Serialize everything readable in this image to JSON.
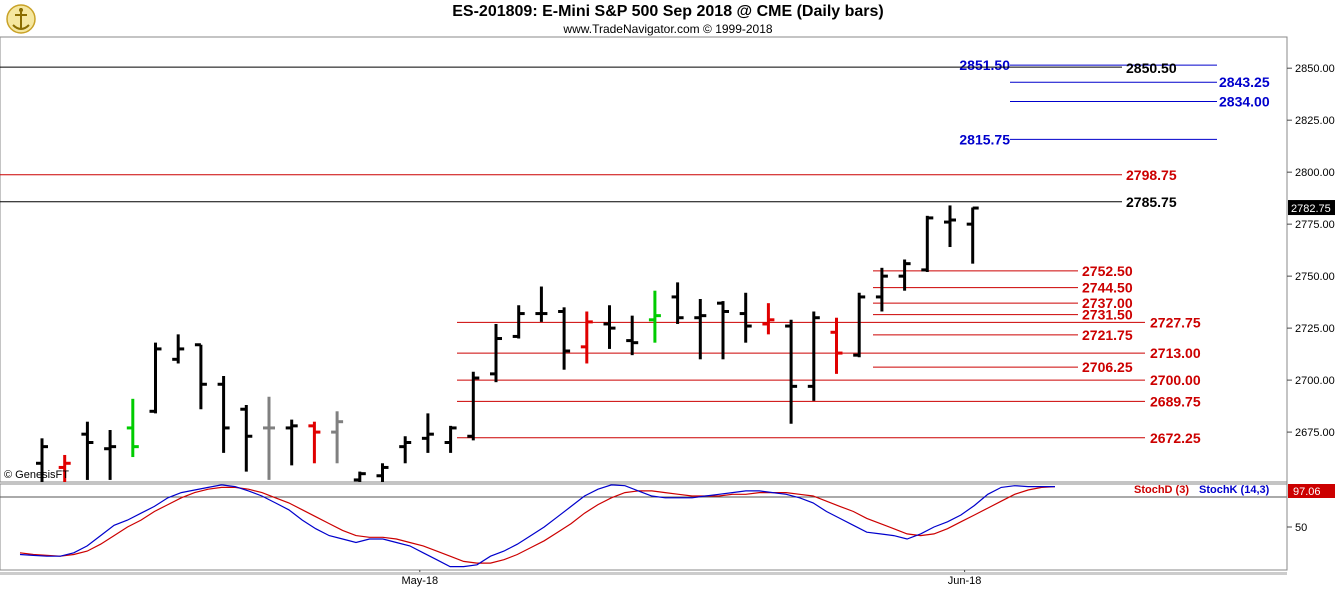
{
  "header": {
    "title": "ES-201809:  E-Mini S&P 500 Sep 2018 @ CME  (Daily bars)",
    "subtitle": "www.TradeNavigator.com © 1999-2018",
    "logo_icon": "trade-navigator-logo-icon"
  },
  "colors": {
    "bar_default": "#000000",
    "bar_up_highlight": "#00cc00",
    "bar_down_highlight": "#e00000",
    "bar_neutral": "#808080",
    "level_black": "#000000",
    "level_red": "#cc0000",
    "level_blue": "#0000cc",
    "stochD": "#cc0000",
    "stochK": "#0000cc",
    "price_badge_bg": "#000000",
    "stoch_badge_bg": "#cc0000"
  },
  "chart_data": {
    "type": "bar",
    "subtype": "ohlc",
    "title": "ES-201809:  E-Mini S&P 500 Sep 2018 @ CME  (Daily bars)",
    "watermark": "© GenesisFT",
    "price_axis": {
      "side": "right",
      "range": [
        2651,
        2865
      ],
      "ticks": [
        "2850.00",
        "2825.00",
        "2800.00",
        "2775.00",
        "2750.00",
        "2725.00",
        "2700.00",
        "2675.00"
      ],
      "tick_values": [
        2850,
        2825,
        2800,
        2775,
        2750,
        2725,
        2700,
        2675
      ],
      "current_price": "2782.75"
    },
    "bars": [
      {
        "o": 2660,
        "h": 2672,
        "l": 2650,
        "c": 2668,
        "color": "black"
      },
      {
        "o": 2658,
        "h": 2664,
        "l": 2650,
        "c": 2660,
        "color": "red"
      },
      {
        "o": 2674,
        "h": 2680,
        "l": 2652,
        "c": 2670,
        "color": "black"
      },
      {
        "o": 2667,
        "h": 2676,
        "l": 2652,
        "c": 2668,
        "color": "black"
      },
      {
        "o": 2677,
        "h": 2691,
        "l": 2663,
        "c": 2668,
        "color": "green"
      },
      {
        "o": 2685,
        "h": 2718,
        "l": 2684,
        "c": 2715,
        "color": "black"
      },
      {
        "o": 2710,
        "h": 2722,
        "l": 2708,
        "c": 2715,
        "color": "black"
      },
      {
        "o": 2717,
        "h": 2717,
        "l": 2686,
        "c": 2698,
        "color": "black"
      },
      {
        "o": 2698,
        "h": 2702,
        "l": 2665,
        "c": 2677,
        "color": "black"
      },
      {
        "o": 2686,
        "h": 2688,
        "l": 2656,
        "c": 2673,
        "color": "black"
      },
      {
        "o": 2677,
        "h": 2692,
        "l": 2652,
        "c": 2677,
        "color": "gray"
      },
      {
        "o": 2677,
        "h": 2681,
        "l": 2659,
        "c": 2678,
        "color": "black"
      },
      {
        "o": 2678,
        "h": 2680,
        "l": 2660,
        "c": 2675,
        "color": "red"
      },
      {
        "o": 2675,
        "h": 2685,
        "l": 2660,
        "c": 2680,
        "color": "gray"
      },
      {
        "o": 2652,
        "h": 2656,
        "l": 2650,
        "c": 2655,
        "color": "black"
      },
      {
        "o": 2654,
        "h": 2660,
        "l": 2650,
        "c": 2658,
        "color": "black"
      },
      {
        "o": 2668,
        "h": 2673,
        "l": 2660,
        "c": 2670,
        "color": "black"
      },
      {
        "o": 2672,
        "h": 2684,
        "l": 2665,
        "c": 2674,
        "color": "black"
      },
      {
        "o": 2670,
        "h": 2678,
        "l": 2665,
        "c": 2677,
        "color": "black"
      },
      {
        "o": 2673,
        "h": 2704,
        "l": 2671,
        "c": 2701,
        "color": "black"
      },
      {
        "o": 2703,
        "h": 2727,
        "l": 2699,
        "c": 2720,
        "color": "black"
      },
      {
        "o": 2721,
        "h": 2736,
        "l": 2720,
        "c": 2732,
        "color": "black"
      },
      {
        "o": 2732,
        "h": 2745,
        "l": 2728,
        "c": 2732,
        "color": "black"
      },
      {
        "o": 2733,
        "h": 2735,
        "l": 2705,
        "c": 2714,
        "color": "black"
      },
      {
        "o": 2716,
        "h": 2733,
        "l": 2708,
        "c": 2728,
        "color": "red"
      },
      {
        "o": 2727,
        "h": 2736,
        "l": 2715,
        "c": 2725,
        "color": "black"
      },
      {
        "o": 2719,
        "h": 2731,
        "l": 2712,
        "c": 2718,
        "color": "black"
      },
      {
        "o": 2729,
        "h": 2743,
        "l": 2718,
        "c": 2731,
        "color": "green"
      },
      {
        "o": 2740,
        "h": 2747,
        "l": 2727,
        "c": 2730,
        "color": "black"
      },
      {
        "o": 2730,
        "h": 2739,
        "l": 2710,
        "c": 2731,
        "color": "black"
      },
      {
        "o": 2737,
        "h": 2738,
        "l": 2710,
        "c": 2733,
        "color": "black"
      },
      {
        "o": 2732,
        "h": 2742,
        "l": 2718,
        "c": 2726,
        "color": "black"
      },
      {
        "o": 2727,
        "h": 2737,
        "l": 2722,
        "c": 2729,
        "color": "red"
      },
      {
        "o": 2726,
        "h": 2729,
        "l": 2679,
        "c": 2697,
        "color": "black"
      },
      {
        "o": 2697,
        "h": 2733,
        "l": 2690,
        "c": 2730,
        "color": "black"
      },
      {
        "o": 2723,
        "h": 2730,
        "l": 2703,
        "c": 2713,
        "color": "red"
      },
      {
        "o": 2712,
        "h": 2742,
        "l": 2711,
        "c": 2740,
        "color": "black"
      },
      {
        "o": 2740,
        "h": 2754,
        "l": 2733,
        "c": 2750,
        "color": "black"
      },
      {
        "o": 2750,
        "h": 2758,
        "l": 2743,
        "c": 2756,
        "color": "black"
      },
      {
        "o": 2753,
        "h": 2779,
        "l": 2752,
        "c": 2778,
        "color": "black"
      },
      {
        "o": 2776,
        "h": 2784,
        "l": 2764,
        "c": 2777,
        "color": "black"
      },
      {
        "o": 2775,
        "h": 2783,
        "l": 2756,
        "c": 2782.75,
        "color": "black"
      }
    ],
    "levels": [
      {
        "label": "2851.50",
        "value": 2851.5,
        "color": "blue",
        "span": "partial",
        "label_side": "left"
      },
      {
        "label": "2850.50",
        "value": 2850.5,
        "color": "black",
        "span": "full",
        "label_side": "right"
      },
      {
        "label": "2843.25",
        "value": 2843.25,
        "color": "blue",
        "span": "short",
        "label_side": "right"
      },
      {
        "label": "2834.00",
        "value": 2834.0,
        "color": "blue",
        "span": "short",
        "label_side": "right"
      },
      {
        "label": "2815.75",
        "value": 2815.75,
        "color": "blue",
        "span": "partial",
        "label_side": "left"
      },
      {
        "label": "2798.75",
        "value": 2798.75,
        "color": "red",
        "span": "full",
        "label_side": "right"
      },
      {
        "label": "2785.75",
        "value": 2785.75,
        "color": "black",
        "span": "full",
        "label_side": "right"
      },
      {
        "label": "2752.50",
        "value": 2752.5,
        "color": "red",
        "span": "short",
        "label_side": "right"
      },
      {
        "label": "2744.50",
        "value": 2744.5,
        "color": "red",
        "span": "short",
        "label_side": "right"
      },
      {
        "label": "2737.00",
        "value": 2737.0,
        "color": "red",
        "span": "short",
        "label_side": "right"
      },
      {
        "label": "2731.50",
        "value": 2731.5,
        "color": "red",
        "span": "short",
        "label_side": "right"
      },
      {
        "label": "2727.75",
        "value": 2727.75,
        "color": "red",
        "span": "mid",
        "label_side": "far"
      },
      {
        "label": "2721.75",
        "value": 2721.75,
        "color": "red",
        "span": "short",
        "label_side": "right"
      },
      {
        "label": "2713.00",
        "value": 2713.0,
        "color": "red",
        "span": "mid",
        "label_side": "far"
      },
      {
        "label": "2706.25",
        "value": 2706.25,
        "color": "red",
        "span": "short",
        "label_side": "right"
      },
      {
        "label": "2700.00",
        "value": 2700.0,
        "color": "red",
        "span": "mid",
        "label_side": "far"
      },
      {
        "label": "2689.75",
        "value": 2689.75,
        "color": "red",
        "span": "mid",
        "label_side": "far"
      },
      {
        "label": "2672.25",
        "value": 2672.25,
        "color": "red",
        "span": "mid",
        "label_side": "far"
      }
    ],
    "stochastic": {
      "range": [
        0,
        100
      ],
      "ticks": [
        "50"
      ],
      "tick_values": [
        50
      ],
      "current_value": "97.06",
      "legend": [
        {
          "name": "StochD (3)",
          "color": "red"
        },
        {
          "name": "StochK (14,3)",
          "color": "blue"
        }
      ],
      "k": [
        18,
        17,
        16,
        16,
        20,
        28,
        40,
        52,
        58,
        66,
        74,
        84,
        90,
        93,
        96,
        99,
        97,
        92,
        86,
        78,
        70,
        58,
        48,
        40,
        36,
        32,
        36,
        36,
        32,
        28,
        20,
        12,
        4,
        4,
        6,
        16,
        22,
        30,
        40,
        50,
        62,
        74,
        86,
        94,
        99,
        98,
        92,
        86,
        84,
        84,
        84,
        86,
        88,
        90,
        92,
        92,
        90,
        88,
        84,
        78,
        68,
        60,
        52,
        44,
        42,
        40,
        36,
        42,
        50,
        56,
        64,
        75,
        88,
        96,
        98,
        97,
        97,
        97
      ],
      "d": [
        20,
        18,
        17,
        16,
        18,
        22,
        30,
        40,
        50,
        58,
        68,
        76,
        84,
        90,
        94,
        96,
        96,
        94,
        90,
        84,
        78,
        70,
        62,
        54,
        46,
        40,
        38,
        38,
        36,
        32,
        28,
        22,
        16,
        10,
        8,
        8,
        12,
        18,
        26,
        34,
        44,
        54,
        66,
        76,
        84,
        90,
        92,
        92,
        90,
        88,
        86,
        86,
        86,
        88,
        88,
        90,
        90,
        90,
        88,
        86,
        80,
        74,
        68,
        60,
        54,
        48,
        42,
        40,
        42,
        48,
        56,
        64,
        72,
        80,
        88,
        93,
        96,
        97
      ]
    },
    "x_axis": {
      "labels": [
        "May-18",
        "Jun-18"
      ],
      "label_bar_index": [
        14,
        38
      ]
    }
  }
}
